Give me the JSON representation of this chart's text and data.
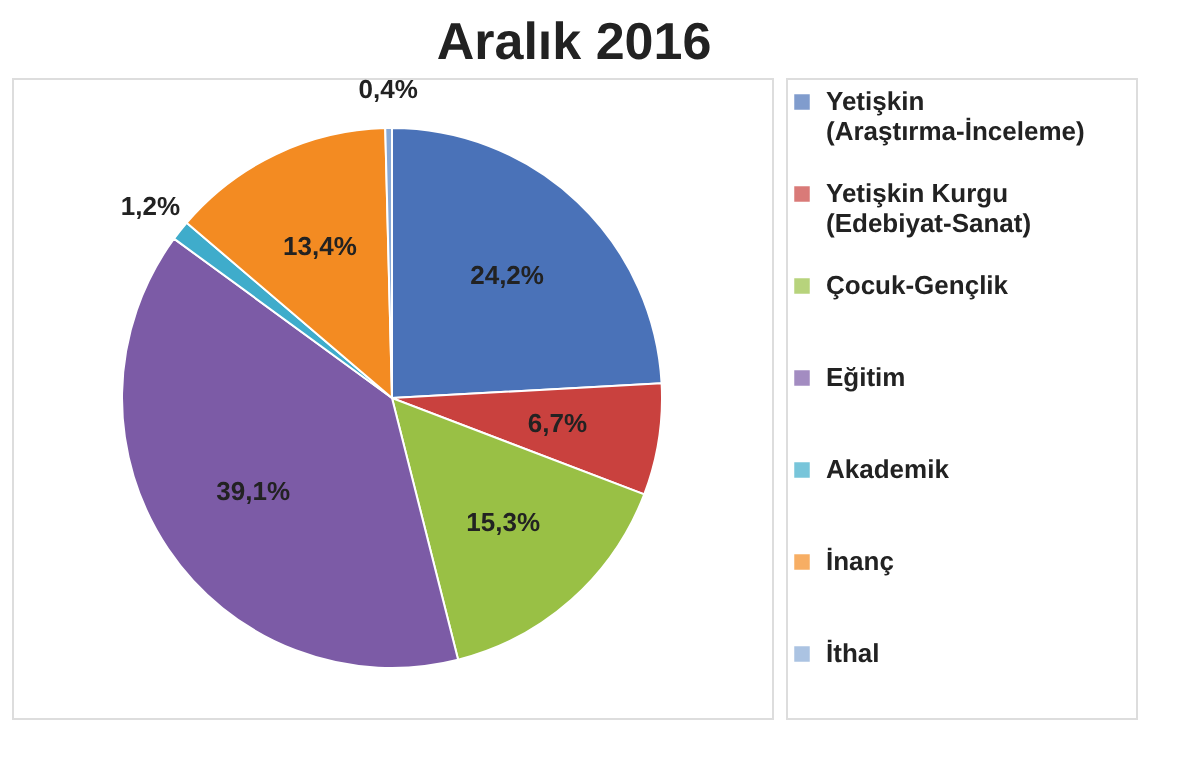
{
  "chart_data": {
    "type": "pie",
    "title": "Aralık 2016",
    "categories": [
      "Yetişkin (Araştırma-İnceleme)",
      "Yetişkin Kurgu (Edebiyat-Sanat)",
      "Çocuk-Gençlik",
      "Eğitim",
      "Akademik",
      "İnanç",
      "İthal"
    ],
    "values": [
      24.2,
      6.7,
      15.3,
      39.1,
      1.2,
      13.4,
      0.4
    ],
    "value_labels": [
      "24,2%",
      "6,7%",
      "15,3%",
      "39,1%",
      "1,2%",
      "13,4%",
      "0,4%"
    ],
    "colors": [
      "#4a72b8",
      "#c9413e",
      "#99c045",
      "#7c5ba6",
      "#3faccb",
      "#f38b22",
      "#88a9d6"
    ],
    "legend": "right"
  }
}
